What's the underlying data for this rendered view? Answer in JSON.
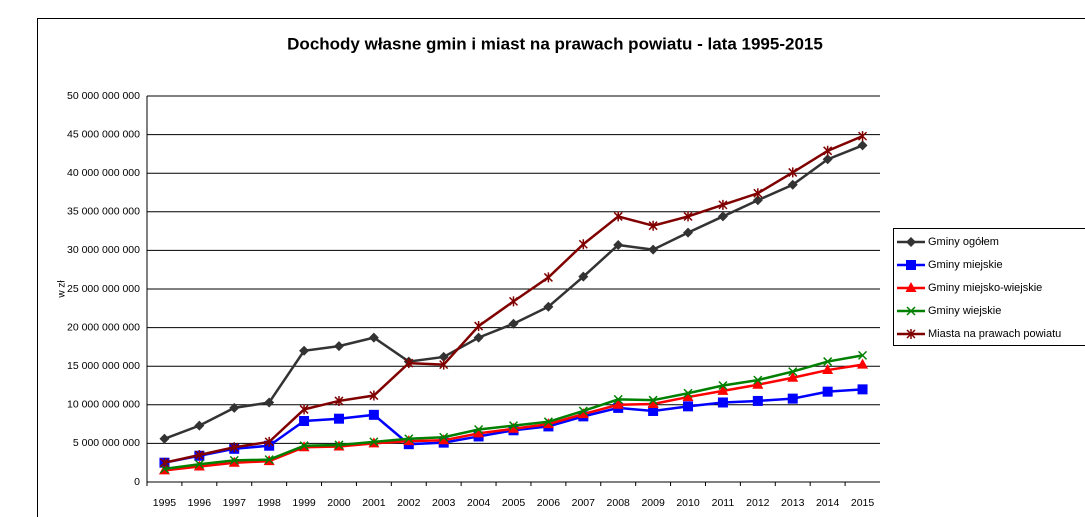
{
  "chart_data": {
    "type": "line",
    "title": "Dochody własne gmin i miast na prawach powiatu - lata 1995-2015",
    "y_label": "w zł",
    "categories": [
      "1995",
      "1996",
      "1997",
      "1998",
      "1999",
      "2000",
      "2001",
      "2002",
      "2003",
      "2004",
      "2005",
      "2006",
      "2007",
      "2008",
      "2009",
      "2010",
      "2011",
      "2012",
      "2013",
      "2014",
      "2015"
    ],
    "ylim": [
      0,
      50000000000
    ],
    "yticks": [
      {
        "value": 0,
        "label": "0"
      },
      {
        "value": 5000000000,
        "label": "5 000 000 000"
      },
      {
        "value": 10000000000,
        "label": "10 000 000 000"
      },
      {
        "value": 15000000000,
        "label": "15 000 000 000"
      },
      {
        "value": 20000000000,
        "label": "20 000 000 000"
      },
      {
        "value": 25000000000,
        "label": "25 000 000 000"
      },
      {
        "value": 30000000000,
        "label": "30 000 000 000"
      },
      {
        "value": 35000000000,
        "label": "35 000 000 000"
      },
      {
        "value": 40000000000,
        "label": "40 000 000 000"
      },
      {
        "value": 45000000000,
        "label": "45 000 000 000"
      },
      {
        "value": 50000000000,
        "label": "50 000 000 000"
      }
    ],
    "grid": true,
    "legend": "right",
    "series": [
      {
        "name": "Gminy ogółem",
        "color": "#333333",
        "marker": "diamond",
        "values": [
          5600000000,
          7300000000,
          9600000000,
          10300000000,
          17000000000,
          17600000000,
          18700000000,
          15600000000,
          16200000000,
          18700000000,
          20500000000,
          22700000000,
          26600000000,
          30700000000,
          30100000000,
          32300000000,
          34400000000,
          36500000000,
          38500000000,
          41800000000,
          43600000000
        ]
      },
      {
        "name": "Gminy miejskie",
        "color": "#0000ff",
        "marker": "square",
        "values": [
          2500000000,
          3400000000,
          4300000000,
          4700000000,
          7900000000,
          8200000000,
          8700000000,
          4900000000,
          5100000000,
          5900000000,
          6700000000,
          7200000000,
          8500000000,
          9600000000,
          9200000000,
          9800000000,
          10300000000,
          10500000000,
          10800000000,
          11700000000,
          12000000000
        ]
      },
      {
        "name": "Gminy miejsko-wiejskie",
        "color": "#ff0000",
        "marker": "triangle",
        "values": [
          1500000000,
          2000000000,
          2500000000,
          2700000000,
          4500000000,
          4600000000,
          5000000000,
          5300000000,
          5400000000,
          6300000000,
          6900000000,
          7500000000,
          8800000000,
          10000000000,
          10100000000,
          11000000000,
          11800000000,
          12600000000,
          13500000000,
          14500000000,
          15200000000
        ]
      },
      {
        "name": "Gminy wiejskie",
        "color": "#008000",
        "marker": "x",
        "values": [
          1700000000,
          2300000000,
          2800000000,
          2900000000,
          4700000000,
          4800000000,
          5200000000,
          5600000000,
          5800000000,
          6800000000,
          7300000000,
          7800000000,
          9200000000,
          10700000000,
          10600000000,
          11500000000,
          12500000000,
          13200000000,
          14300000000,
          15600000000,
          16400000000
        ]
      },
      {
        "name": "Miasta na prawach powiatu",
        "color": "#800000",
        "marker": "star",
        "values": [
          2500000000,
          3500000000,
          4500000000,
          5200000000,
          9400000000,
          10500000000,
          11200000000,
          15400000000,
          15200000000,
          20200000000,
          23400000000,
          26500000000,
          30800000000,
          34400000000,
          33200000000,
          34400000000,
          35900000000,
          37400000000,
          40100000000,
          42900000000,
          44800000000
        ]
      }
    ]
  }
}
